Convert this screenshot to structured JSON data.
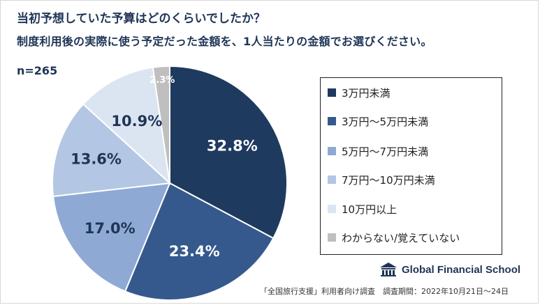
{
  "header": {
    "question": "当初予想していた予算はどのくらいでしたか？",
    "instruction": "制度利用後の実際に使う予定だった金額を、1人当たりの金額でお選びください。",
    "sample_size": "n=265"
  },
  "chart_data": {
    "type": "pie",
    "title": "当初予想していた予算はどのくらいでしたか？",
    "unit": "%",
    "categories": [
      "3万円未満",
      "3万円～5万円未満",
      "5万円～7万円未満",
      "7万円～10万円未満",
      "10万円以上",
      "わからない/覚えていない"
    ],
    "values": [
      32.8,
      23.4,
      17.0,
      13.6,
      10.9,
      2.3
    ],
    "labels": [
      "32.8%",
      "23.4%",
      "17.0%",
      "13.6%",
      "10.9%",
      "2.3%"
    ],
    "colors": [
      "#1f3a5f",
      "#35598c",
      "#8ea9d4",
      "#b3c6e3",
      "#dbe5f2",
      "#bfbfbf"
    ],
    "label_colors": [
      "#ffffff",
      "#ffffff",
      "#1f3556",
      "#1f3556",
      "#1f3556",
      "#ffffff"
    ],
    "legend_position": "right"
  },
  "brand": {
    "name": "Global Financial School",
    "logo_icon": "school-building-icon"
  },
  "footnote": "「全国旅行支援」利用者向け調査　調査期間：2022年10月21日～24日"
}
